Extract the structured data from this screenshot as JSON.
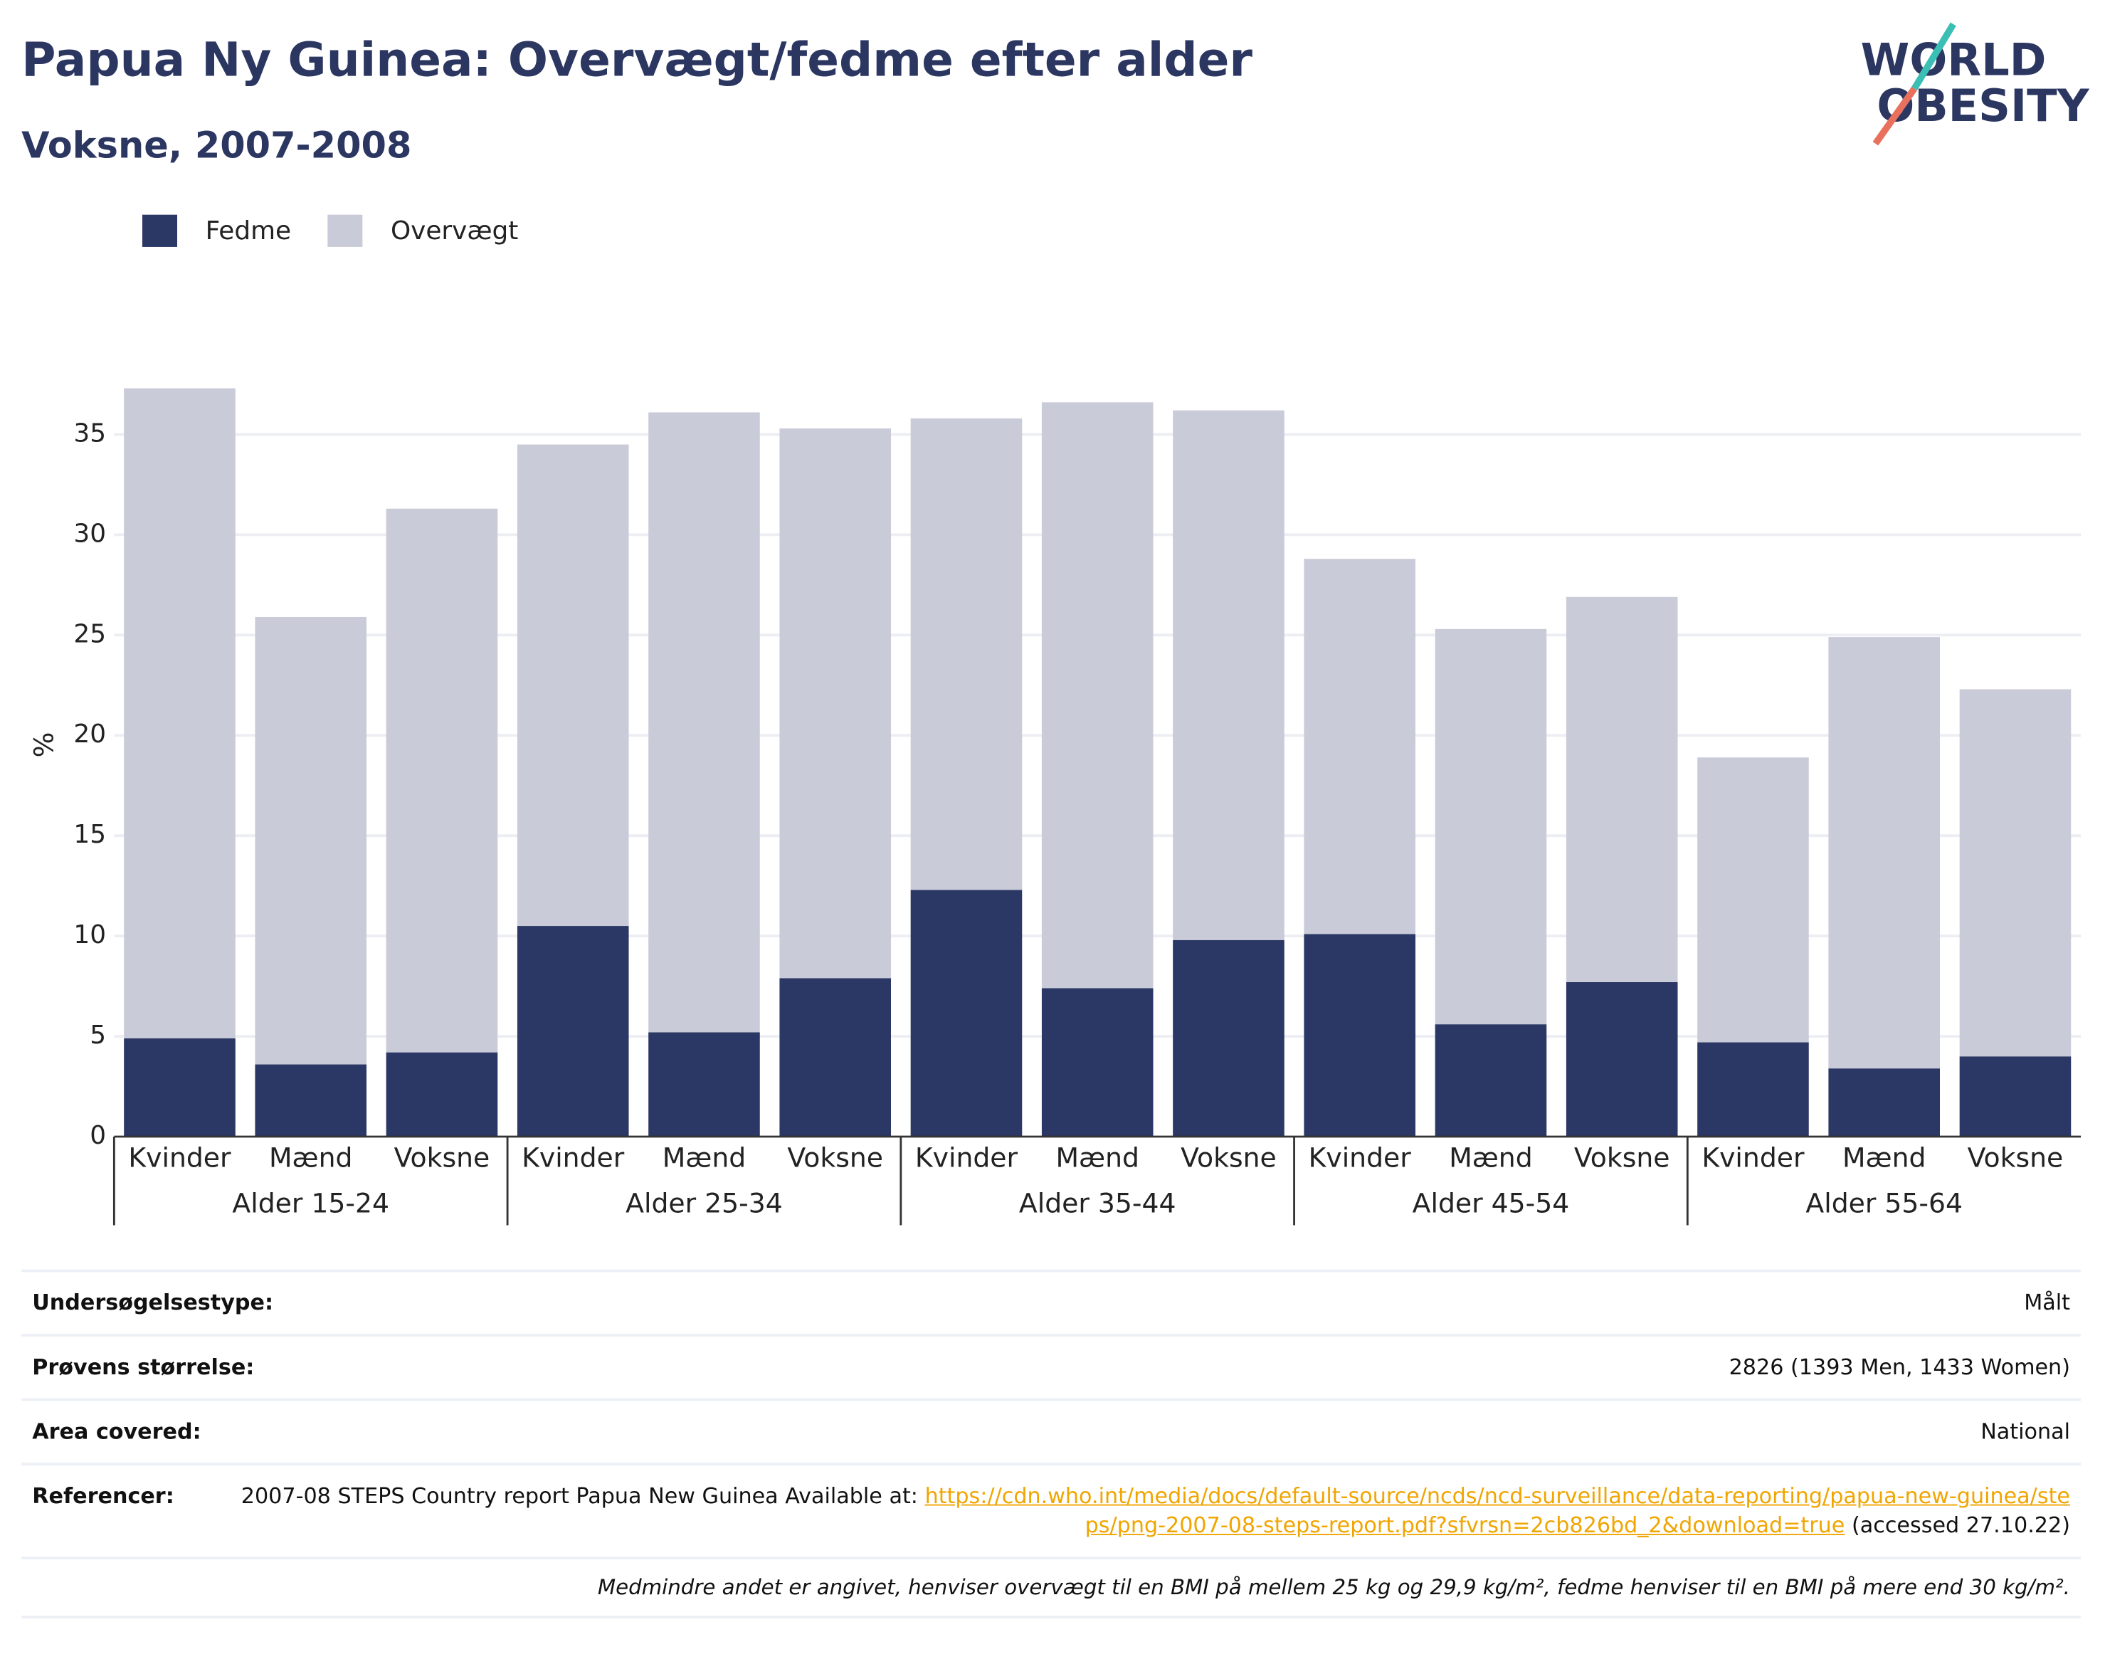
{
  "chart_data": {
    "type": "stacked-bar",
    "title": "Papua Ny Guinea: Overvægt/fedme efter alder",
    "subtitle": "Voksne, 2007-2008",
    "y_label": "%",
    "categories": [
      "Kvinder",
      "Mænd",
      "Voksne",
      "Kvinder",
      "Mænd",
      "Voksne",
      "Kvinder",
      "Mænd",
      "Voksne",
      "Kvinder",
      "Mænd",
      "Voksne",
      "Kvinder",
      "Mænd",
      "Voksne"
    ],
    "groups": [
      "Alder 15-24",
      "Alder 25-34",
      "Alder 35-44",
      "Alder 45-54",
      "Alder 55-64"
    ],
    "series": [
      {
        "name": "Fedme",
        "color": "#2b3764",
        "values": [
          4.9,
          3.6,
          4.2,
          10.5,
          5.2,
          7.9,
          12.3,
          7.4,
          9.8,
          10.1,
          5.6,
          7.7,
          4.7,
          3.4,
          4.0
        ]
      },
      {
        "name": "Overvægt",
        "color": "#cacbd8",
        "values": [
          32.4,
          22.3,
          27.1,
          24.0,
          30.9,
          27.4,
          23.5,
          29.2,
          26.4,
          18.7,
          19.7,
          19.2,
          14.2,
          21.5,
          18.3
        ]
      }
    ],
    "ylim": [
      0,
      40
    ],
    "yticks": [
      0,
      5,
      10,
      15,
      20,
      25,
      30,
      35
    ],
    "grid": true,
    "legend": "top-left"
  },
  "logo": {
    "line1": "WORLD",
    "line2": "OBESITY"
  },
  "table": {
    "rows": [
      [
        "Undersøgelsestype:",
        "Målt"
      ],
      [
        "Prøvens størrelse:",
        "2826 (1393 Men, 1433 Women)"
      ],
      [
        "Area covered:",
        "National"
      ]
    ],
    "reference": {
      "label": "Referencer:",
      "text": "2007-08 STEPS Country report Papua New Guinea Available at: ",
      "link": "https://cdn.who.int/media/docs/default-source/ncds/ncd-surveillance/data-reporting/papua-new-guinea/steps/png-2007-08-steps-report.pdf?sfvrsn=2cb826bd_2&download=true",
      "suffix": " (accessed 27.10.22)"
    },
    "footnote": "Medmindre andet er angivet, henviser overvægt til en BMI på mellem 25 kg og 29,9 kg/m², fedme henviser til en BMI på mere end 30 kg/m²."
  }
}
